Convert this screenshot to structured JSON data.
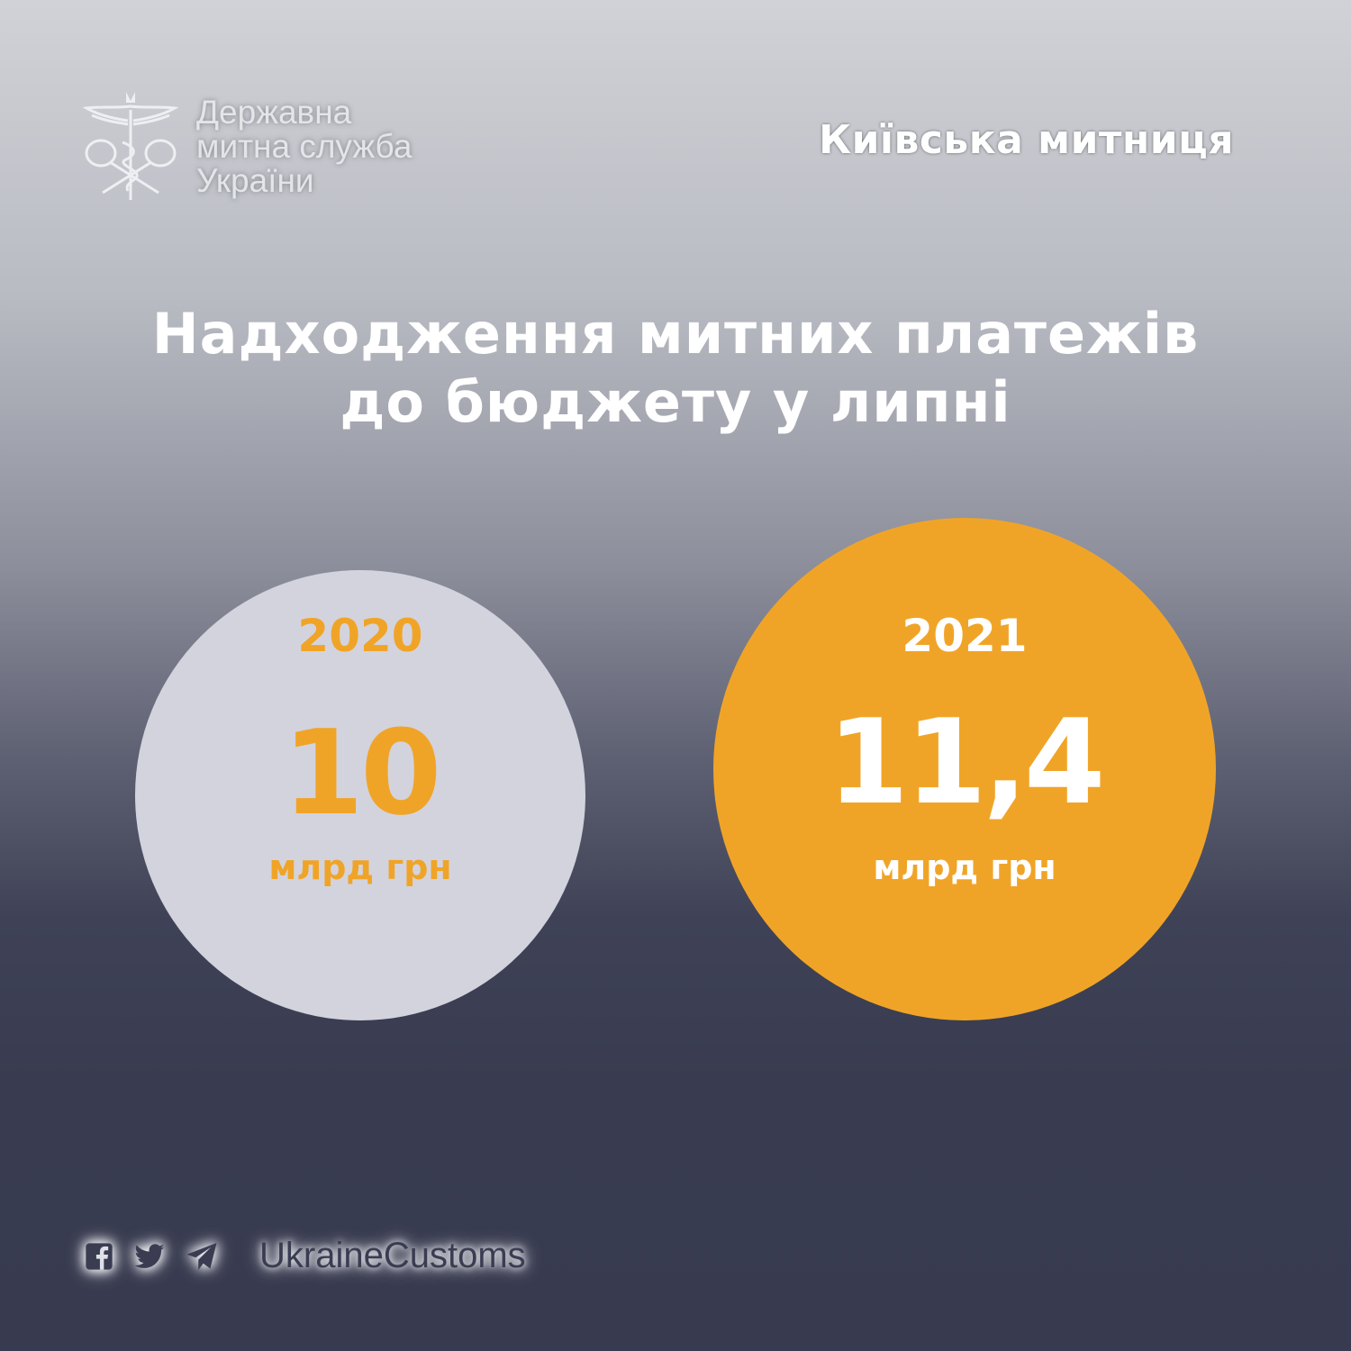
{
  "header": {
    "logo_text_lines": [
      "Державна",
      "митна служба",
      "України"
    ],
    "office": "Київська митниця"
  },
  "title_lines": [
    "Надходження митних платежів",
    "до бюджету у липні"
  ],
  "chart_data": {
    "type": "bubble",
    "categories": [
      "2020",
      "2021"
    ],
    "values": [
      10,
      11.4
    ],
    "value_labels": [
      "10",
      "11,4"
    ],
    "unit": "млрд грн",
    "colors": [
      "#d3d3de",
      "#f0a427"
    ],
    "text_colors": [
      "#f0a427",
      "#ffffff"
    ]
  },
  "footer": {
    "icons": [
      "facebook-icon",
      "twitter-icon",
      "telegram-icon"
    ],
    "handle": "UkraineCustoms"
  }
}
